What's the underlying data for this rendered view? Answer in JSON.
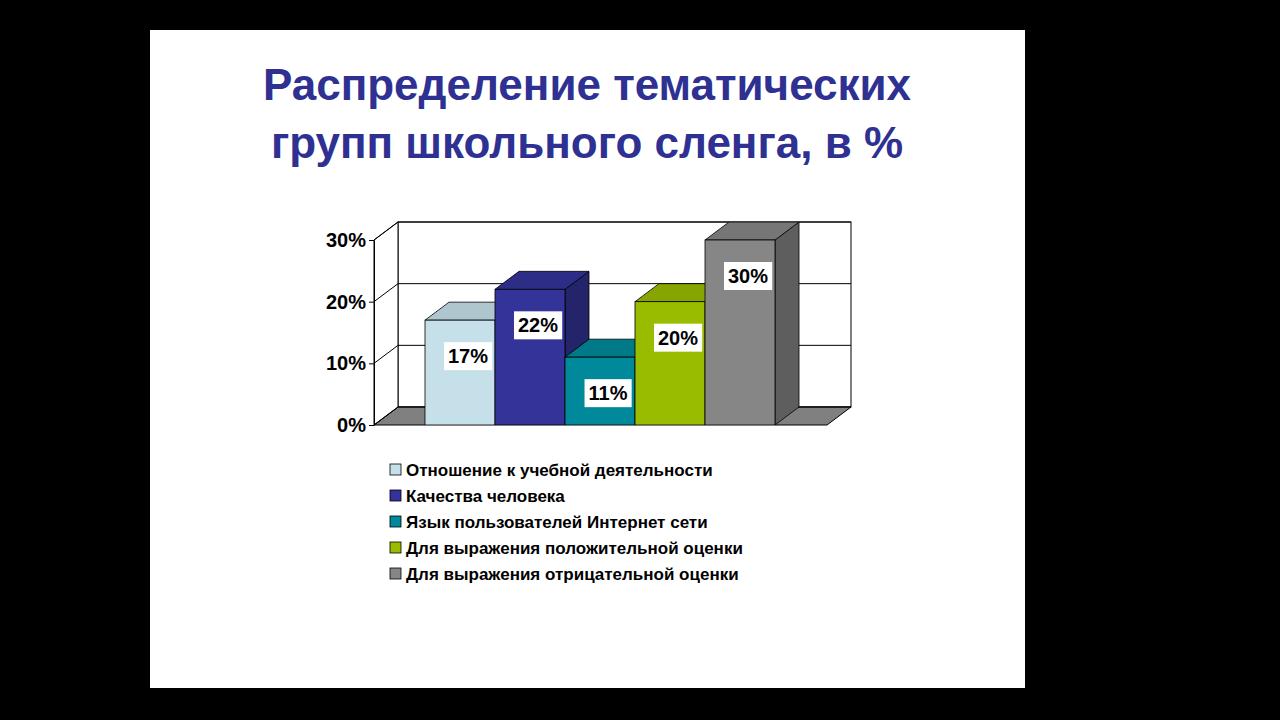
{
  "chart_data": {
    "type": "bar",
    "title": "Распределение тематических групп школьного сленга, в %",
    "categories": [
      "Отношение к учебной деятельности",
      "Качества человека",
      "Язык пользователей Интернет сети",
      "Для выражения положительной оценки",
      "Для выражения отрицательной оценки"
    ],
    "values": [
      17,
      22,
      11,
      20,
      30
    ],
    "value_labels": [
      "17%",
      "22%",
      "11%",
      "20%",
      "30%"
    ],
    "colors": [
      "#c5e0e8",
      "#333399",
      "#00899a",
      "#99bb00",
      "#868686"
    ],
    "ylim": [
      0,
      30
    ],
    "yticks": [
      {
        "value": 0,
        "label": "0%"
      },
      {
        "value": 10,
        "label": "10%"
      },
      {
        "value": 20,
        "label": "20%"
      },
      {
        "value": 30,
        "label": "30%"
      }
    ],
    "grid": true,
    "data_labels": true,
    "legend": "bottom",
    "tick_labels": "y"
  }
}
